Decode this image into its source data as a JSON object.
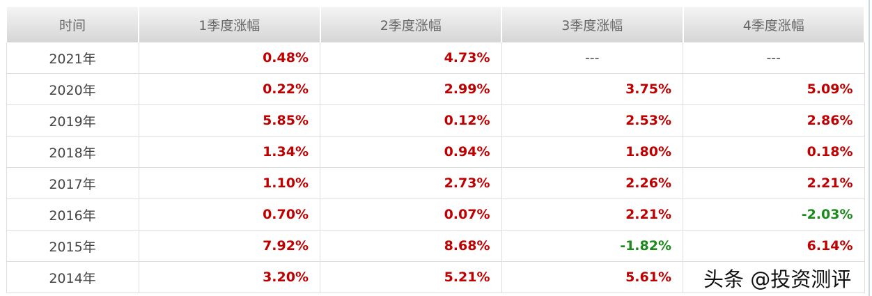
{
  "headers": [
    "时间",
    "1季度涨幅",
    "2季度涨幅",
    "3季度涨幅",
    "4季度涨幅"
  ],
  "rows": [
    {
      "year": "2021年",
      "q": [
        "0.48%",
        "4.73%",
        "---",
        "---"
      ]
    },
    {
      "year": "2020年",
      "q": [
        "0.22%",
        "2.99%",
        "3.75%",
        "5.09%"
      ]
    },
    {
      "year": "2019年",
      "q": [
        "5.85%",
        "0.12%",
        "2.53%",
        "2.86%"
      ]
    },
    {
      "year": "2018年",
      "q": [
        "1.34%",
        "0.94%",
        "1.80%",
        "0.18%"
      ]
    },
    {
      "year": "2017年",
      "q": [
        "1.10%",
        "2.73%",
        "2.26%",
        "2.21%"
      ]
    },
    {
      "year": "2016年",
      "q": [
        "0.70%",
        "0.07%",
        "2.21%",
        "-2.03%"
      ]
    },
    {
      "year": "2015年",
      "q": [
        "7.92%",
        "8.68%",
        "-1.82%",
        "6.14%"
      ]
    },
    {
      "year": "2014年",
      "q": [
        "3.20%",
        "5.21%",
        "5.61%",
        ""
      ]
    }
  ],
  "watermark": "头条 @投资测评",
  "colors": {
    "positive": "#c00000",
    "negative": "#1a8a1a"
  }
}
